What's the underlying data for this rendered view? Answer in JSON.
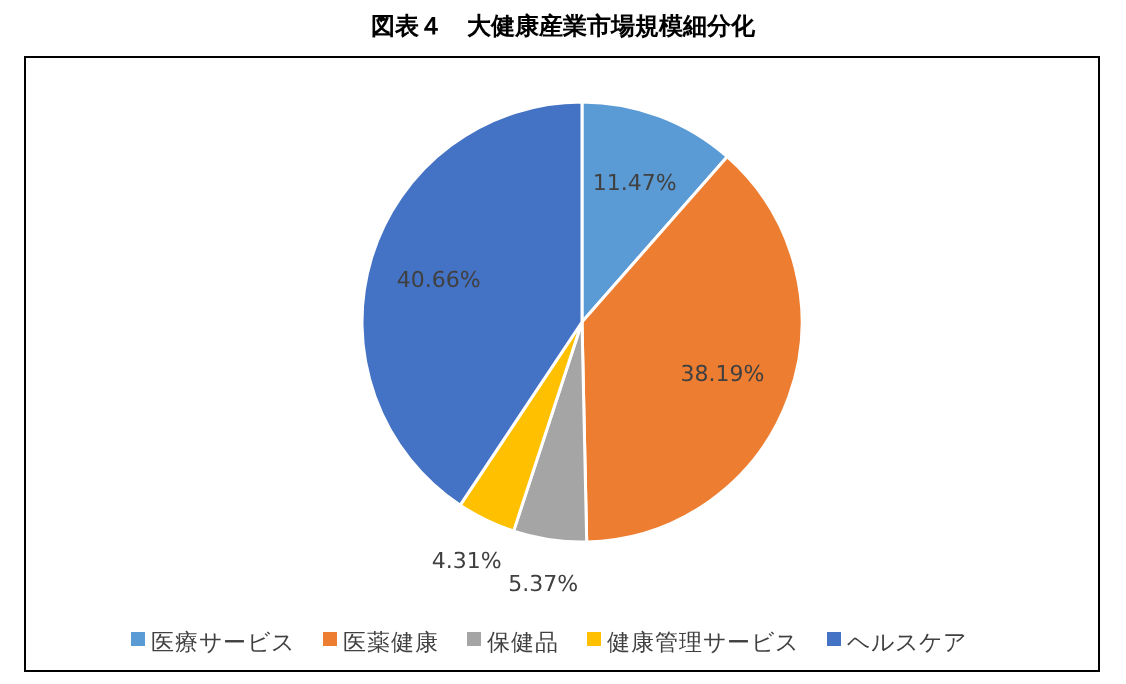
{
  "chart_data": {
    "type": "pie",
    "title": "図表４　大健康産業市場規模細分化",
    "categories": [
      "医療サービス",
      "医薬健康",
      "保健品",
      "健康管理サービス",
      "ヘルスケア"
    ],
    "values": [
      11.47,
      38.19,
      5.37,
      4.31,
      40.66
    ],
    "colors": [
      "#5b9bd5",
      "#ed7d31",
      "#a5a5a5",
      "#ffc000",
      "#4472c4"
    ],
    "value_labels": [
      "11.47%",
      "38.19%",
      "5.37%",
      "4.31%",
      "40.66%"
    ],
    "legend": "bottom"
  }
}
